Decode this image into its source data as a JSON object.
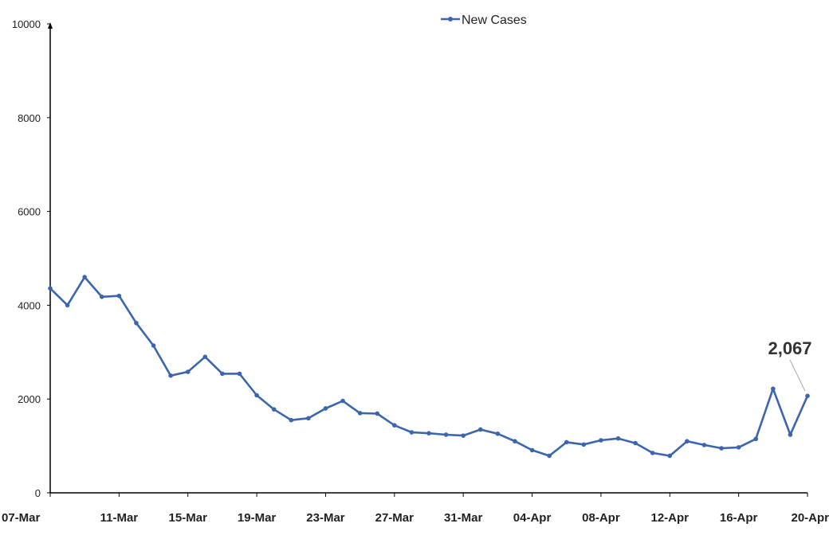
{
  "chart_data": {
    "type": "line",
    "series": [
      {
        "name": "New Cases",
        "color": "#3b66ad",
        "values": [
          4360,
          4000,
          4600,
          4180,
          4200,
          3620,
          3140,
          2500,
          2580,
          2900,
          2540,
          2540,
          2080,
          1780,
          1550,
          1590,
          1800,
          1960,
          1700,
          1690,
          1440,
          1290,
          1270,
          1240,
          1220,
          1350,
          1260,
          1100,
          910,
          790,
          1080,
          1030,
          1120,
          1160,
          1060,
          850,
          790,
          1100,
          1020,
          950,
          970,
          1150,
          2220,
          1240,
          2067
        ]
      }
    ],
    "x_tick_labels": [
      "07-Mar",
      "11-Mar",
      "15-Mar",
      "19-Mar",
      "23-Mar",
      "27-Mar",
      "31-Mar",
      "04-Apr",
      "08-Apr",
      "12-Apr",
      "16-Apr",
      "20-Apr"
    ],
    "x_tick_every": 4,
    "y_ticks": [
      "0",
      "2000",
      "4000",
      "6000",
      "8000",
      "10000"
    ],
    "ylim": [
      0,
      10000
    ],
    "grid": false,
    "legend_position": "top-center",
    "annotation": {
      "text": "2,067",
      "point_index": 44
    }
  }
}
